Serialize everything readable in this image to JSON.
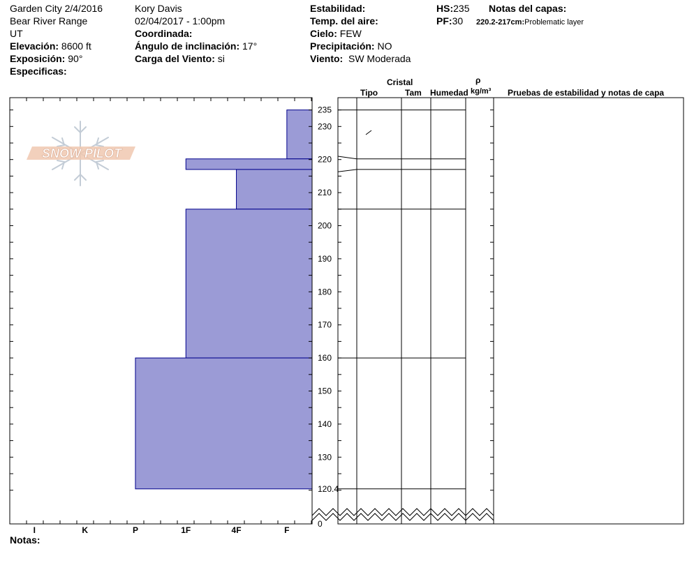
{
  "header": {
    "location": "Garden City 2/4/2016",
    "range": "Bear River Range",
    "state": "UT",
    "elevation_label": "Elevación:",
    "elevation": "8600 ft",
    "aspect_label": "Exposición:",
    "aspect": "90°",
    "specifics_label": "Especificas:",
    "observer": "Kory Davis",
    "datetime": "02/04/2017 - 1:00pm",
    "coord_label": "Coordinada:",
    "slope_label": "Ángulo de inclinación:",
    "slope": "17°",
    "wind_load_label": "Carga del Viento:",
    "wind_load": "si",
    "stability_label": "Estabilidad:",
    "air_temp_label": "Temp. del aire:",
    "sky_label": "Cielo:",
    "sky": "FEW",
    "precip_label": "Precipitación:",
    "precip": "NO",
    "wind_label": "Viento:",
    "wind": "SW Moderada",
    "hs_label": "HS:",
    "hs": "235",
    "pf_label": "PF:",
    "pf": "30",
    "layer_notes_label": "Notas del capas:",
    "layer_note_depth": "220.2-217cm:",
    "layer_note_text": "Problematic layer"
  },
  "logo": {
    "text": "SNOW PILOT"
  },
  "columns": {
    "crystal": "Cristal",
    "type": "Tipo",
    "size": "Tam",
    "moisture": "Humedad",
    "rho": "ρ",
    "density_unit": "kg/m³",
    "tests": "Pruebas de estabilidad y notas de capa"
  },
  "notes_label": "Notas:",
  "chart_data": {
    "type": "bar",
    "orientation": "horizontal",
    "x_categories": [
      "I",
      "K",
      "P",
      "1F",
      "4F",
      "F"
    ],
    "y_ticks": [
      235,
      230,
      220,
      210,
      200,
      190,
      180,
      170,
      160,
      150,
      140,
      130,
      "120.4",
      0
    ],
    "y_axis_break": true,
    "layers": [
      {
        "top": 235,
        "bottom": 220.2,
        "hardness_index": 0.5
      },
      {
        "top": 220.2,
        "bottom": 217,
        "hardness_index": 2.5
      },
      {
        "top": 217,
        "bottom": 205,
        "hardness_index": 1.5
      },
      {
        "top": 205,
        "bottom": 160,
        "hardness_index": 2.5
      },
      {
        "top": 160,
        "bottom": 120.4,
        "hardness_index": 3.5
      }
    ],
    "fill_color": "#9b9bd6",
    "stroke_color": "#00008b"
  }
}
